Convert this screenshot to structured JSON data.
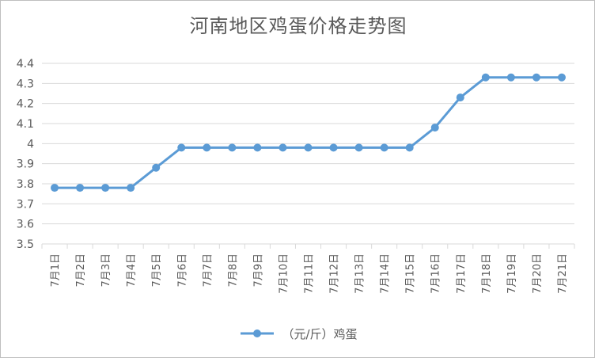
{
  "chart_data": {
    "type": "line",
    "title": "河南地区鸡蛋价格走势图",
    "categories": [
      "7月1日",
      "7月2日",
      "7月3日",
      "7月4日",
      "7月5日",
      "7月6日",
      "7月7日",
      "7月8日",
      "7月9日",
      "7月10日",
      "7月11日",
      "7月12日",
      "7月13日",
      "7月14日",
      "7月15日",
      "7月16日",
      "7月17日",
      "7月18日",
      "7月19日",
      "7月20日",
      "7月21日"
    ],
    "series": [
      {
        "name": "（元/斤）鸡蛋",
        "values": [
          3.78,
          3.78,
          3.78,
          3.78,
          3.88,
          3.98,
          3.98,
          3.98,
          3.98,
          3.98,
          3.98,
          3.98,
          3.98,
          3.98,
          3.98,
          4.08,
          4.23,
          4.33,
          4.33,
          4.33,
          4.33
        ],
        "color": "#5b9bd5"
      }
    ],
    "ylim": [
      3.5,
      4.4
    ],
    "yticks": [
      "3.5",
      "3.6",
      "3.7",
      "3.8",
      "3.9",
      "4",
      "4.1",
      "4.2",
      "4.3",
      "4.4"
    ],
    "xlabel": "",
    "ylabel": "",
    "grid": true,
    "legend": "bottom"
  },
  "colors": {
    "series": "#5b9bd5",
    "grid": "#d9d9d9",
    "text": "#595959"
  }
}
